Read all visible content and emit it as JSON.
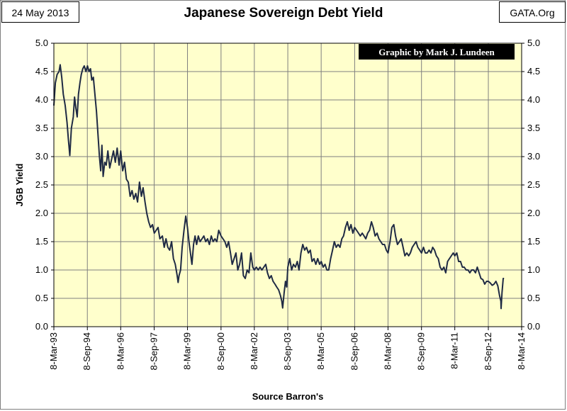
{
  "header": {
    "date": "24 May 2013",
    "site": "GATA.Org",
    "title": "Japanese Sovereign Debt Yield"
  },
  "colors": {
    "plot_background": "#ffffcc",
    "line": "#1f2a44",
    "gridline": "#7f7f7f",
    "credit_background": "#000000"
  },
  "chart_data": {
    "type": "line",
    "title": "Japanese Sovereign Debt Yield",
    "xlabel": "Source Barron's",
    "ylabel": "JGB Yield",
    "credit": "Graphic by Mark J. Lundeen",
    "ylim": [
      0,
      5
    ],
    "xlim": [
      "1993-03-08",
      "2014-03-08"
    ],
    "y_ticks": [
      "0.0",
      "0.5",
      "1.0",
      "1.5",
      "2.0",
      "2.5",
      "3.0",
      "3.5",
      "4.0",
      "4.5",
      "5.0"
    ],
    "x_ticks": [
      {
        "label": "8-Mar-93",
        "date": "1993-03-08"
      },
      {
        "label": "8-Sep-94",
        "date": "1994-09-08"
      },
      {
        "label": "8-Mar-96",
        "date": "1996-03-08"
      },
      {
        "label": "8-Sep-97",
        "date": "1997-09-08"
      },
      {
        "label": "8-Mar-99",
        "date": "1999-03-08"
      },
      {
        "label": "8-Sep-00",
        "date": "2000-09-08"
      },
      {
        "label": "8-Mar-02",
        "date": "2002-03-08"
      },
      {
        "label": "8-Sep-03",
        "date": "2003-09-08"
      },
      {
        "label": "8-Mar-05",
        "date": "2005-03-08"
      },
      {
        "label": "8-Sep-06",
        "date": "2006-09-08"
      },
      {
        "label": "8-Mar-08",
        "date": "2008-03-08"
      },
      {
        "label": "8-Sep-09",
        "date": "2009-09-08"
      },
      {
        "label": "8-Mar-11",
        "date": "2011-03-08"
      },
      {
        "label": "8-Sep-12",
        "date": "2012-09-08"
      },
      {
        "label": "8-Mar-14",
        "date": "2014-03-08"
      }
    ],
    "grid": {
      "horizontal": true,
      "vertical": true
    },
    "axis_right": true,
    "series": [
      {
        "points": [
          [
            "1993-03-08",
            3.9
          ],
          [
            "1993-04-01",
            4.3
          ],
          [
            "1993-05-01",
            4.45
          ],
          [
            "1993-06-01",
            4.5
          ],
          [
            "1993-06-20",
            4.62
          ],
          [
            "1993-07-15",
            4.4
          ],
          [
            "1993-08-10",
            4.1
          ],
          [
            "1993-09-10",
            3.9
          ],
          [
            "1993-10-10",
            3.6
          ],
          [
            "1993-11-01",
            3.3
          ],
          [
            "1993-11-25",
            3.02
          ],
          [
            "1993-12-20",
            3.5
          ],
          [
            "1994-01-20",
            3.7
          ],
          [
            "1994-02-10",
            4.05
          ],
          [
            "1994-03-05",
            3.85
          ],
          [
            "1994-03-25",
            3.7
          ],
          [
            "1994-04-15",
            4.1
          ],
          [
            "1994-05-10",
            4.3
          ],
          [
            "1994-06-01",
            4.45
          ],
          [
            "1994-06-25",
            4.55
          ],
          [
            "1994-07-20",
            4.6
          ],
          [
            "1994-08-15",
            4.5
          ],
          [
            "1994-09-10",
            4.6
          ],
          [
            "1994-10-05",
            4.5
          ],
          [
            "1994-10-30",
            4.55
          ],
          [
            "1994-11-20",
            4.35
          ],
          [
            "1994-12-15",
            4.4
          ],
          [
            "1995-01-10",
            4.1
          ],
          [
            "1995-02-05",
            3.8
          ],
          [
            "1995-03-01",
            3.4
          ],
          [
            "1995-03-25",
            3.0
          ],
          [
            "1995-04-15",
            2.75
          ],
          [
            "1995-05-05",
            3.2
          ],
          [
            "1995-05-25",
            2.65
          ],
          [
            "1995-06-20",
            2.9
          ],
          [
            "1995-07-15",
            2.85
          ],
          [
            "1995-08-10",
            3.1
          ],
          [
            "1995-09-10",
            2.8
          ],
          [
            "1995-10-10",
            2.95
          ],
          [
            "1995-11-10",
            3.1
          ],
          [
            "1995-12-10",
            2.9
          ],
          [
            "1996-01-10",
            3.15
          ],
          [
            "1996-02-10",
            2.85
          ],
          [
            "1996-03-08",
            3.1
          ],
          [
            "1996-04-10",
            2.75
          ],
          [
            "1996-05-10",
            2.9
          ],
          [
            "1996-06-10",
            2.6
          ],
          [
            "1996-07-10",
            2.55
          ],
          [
            "1996-08-10",
            2.3
          ],
          [
            "1996-09-10",
            2.4
          ],
          [
            "1996-10-10",
            2.25
          ],
          [
            "1996-11-10",
            2.35
          ],
          [
            "1996-12-10",
            2.2
          ],
          [
            "1997-01-10",
            2.55
          ],
          [
            "1997-02-10",
            2.3
          ],
          [
            "1997-03-10",
            2.45
          ],
          [
            "1997-04-10",
            2.2
          ],
          [
            "1997-05-10",
            2.0
          ],
          [
            "1997-06-10",
            1.85
          ],
          [
            "1997-07-10",
            1.75
          ],
          [
            "1997-08-10",
            1.8
          ],
          [
            "1997-09-10",
            1.65
          ],
          [
            "1997-10-10",
            1.7
          ],
          [
            "1997-11-10",
            1.75
          ],
          [
            "1997-12-10",
            1.55
          ],
          [
            "1998-01-20",
            1.6
          ],
          [
            "1998-02-20",
            1.4
          ],
          [
            "1998-03-20",
            1.55
          ],
          [
            "1998-04-20",
            1.4
          ],
          [
            "1998-05-20",
            1.35
          ],
          [
            "1998-06-20",
            1.5
          ],
          [
            "1998-07-20",
            1.2
          ],
          [
            "1998-08-20",
            1.1
          ],
          [
            "1998-09-20",
            0.9
          ],
          [
            "1998-10-05",
            0.78
          ],
          [
            "1998-10-20",
            0.9
          ],
          [
            "1998-11-15",
            1.0
          ],
          [
            "1998-12-10",
            1.4
          ],
          [
            "1999-01-10",
            1.7
          ],
          [
            "1999-02-08",
            1.95
          ],
          [
            "1999-03-08",
            1.75
          ],
          [
            "1999-04-01",
            1.5
          ],
          [
            "1999-04-25",
            1.3
          ],
          [
            "1999-05-20",
            1.1
          ],
          [
            "1999-06-15",
            1.45
          ],
          [
            "1999-07-10",
            1.6
          ],
          [
            "1999-08-05",
            1.45
          ],
          [
            "1999-09-01",
            1.6
          ],
          [
            "1999-10-01",
            1.5
          ],
          [
            "1999-11-01",
            1.55
          ],
          [
            "1999-12-01",
            1.6
          ],
          [
            "2000-01-01",
            1.5
          ],
          [
            "2000-02-01",
            1.55
          ],
          [
            "2000-03-01",
            1.45
          ],
          [
            "2000-04-01",
            1.6
          ],
          [
            "2000-05-01",
            1.5
          ],
          [
            "2000-06-01",
            1.55
          ],
          [
            "2000-07-01",
            1.5
          ],
          [
            "2000-08-01",
            1.7
          ],
          [
            "2000-09-08",
            1.6
          ],
          [
            "2000-10-10",
            1.55
          ],
          [
            "2000-11-10",
            1.5
          ],
          [
            "2000-12-10",
            1.4
          ],
          [
            "2001-01-10",
            1.5
          ],
          [
            "2001-02-10",
            1.3
          ],
          [
            "2001-03-10",
            1.1
          ],
          [
            "2001-04-10",
            1.2
          ],
          [
            "2001-05-10",
            1.3
          ],
          [
            "2001-06-10",
            1.0
          ],
          [
            "2001-07-10",
            1.1
          ],
          [
            "2001-08-10",
            1.3
          ],
          [
            "2001-09-10",
            0.9
          ],
          [
            "2001-10-10",
            0.85
          ],
          [
            "2001-11-10",
            1.0
          ],
          [
            "2001-12-10",
            0.95
          ],
          [
            "2002-01-10",
            1.3
          ],
          [
            "2002-02-10",
            1.05
          ],
          [
            "2002-03-08",
            1.0
          ],
          [
            "2002-04-10",
            1.05
          ],
          [
            "2002-05-10",
            1.0
          ],
          [
            "2002-06-10",
            1.05
          ],
          [
            "2002-07-10",
            1.0
          ],
          [
            "2002-08-10",
            1.05
          ],
          [
            "2002-09-10",
            1.1
          ],
          [
            "2002-10-10",
            0.95
          ],
          [
            "2002-11-10",
            0.85
          ],
          [
            "2002-12-10",
            0.9
          ],
          [
            "2003-01-10",
            0.8
          ],
          [
            "2003-02-10",
            0.75
          ],
          [
            "2003-03-10",
            0.7
          ],
          [
            "2003-04-10",
            0.65
          ],
          [
            "2003-05-10",
            0.55
          ],
          [
            "2003-06-01",
            0.45
          ],
          [
            "2003-06-15",
            0.33
          ],
          [
            "2003-07-10",
            0.6
          ],
          [
            "2003-08-01",
            0.8
          ],
          [
            "2003-08-20",
            0.7
          ],
          [
            "2003-09-08",
            1.05
          ],
          [
            "2003-10-10",
            1.2
          ],
          [
            "2003-11-10",
            1.0
          ],
          [
            "2003-12-10",
            1.1
          ],
          [
            "2004-01-10",
            1.05
          ],
          [
            "2004-02-10",
            1.15
          ],
          [
            "2004-03-10",
            1.0
          ],
          [
            "2004-04-10",
            1.3
          ],
          [
            "2004-05-10",
            1.45
          ],
          [
            "2004-06-10",
            1.35
          ],
          [
            "2004-07-10",
            1.4
          ],
          [
            "2004-08-10",
            1.3
          ],
          [
            "2004-09-10",
            1.35
          ],
          [
            "2004-10-10",
            1.15
          ],
          [
            "2004-11-10",
            1.2
          ],
          [
            "2004-12-10",
            1.1
          ],
          [
            "2005-01-10",
            1.2
          ],
          [
            "2005-02-10",
            1.1
          ],
          [
            "2005-03-08",
            1.15
          ],
          [
            "2005-04-10",
            1.05
          ],
          [
            "2005-05-10",
            1.1
          ],
          [
            "2005-06-10",
            1.0
          ],
          [
            "2005-07-10",
            1.0
          ],
          [
            "2005-08-10",
            1.2
          ],
          [
            "2005-09-10",
            1.35
          ],
          [
            "2005-10-10",
            1.5
          ],
          [
            "2005-11-10",
            1.4
          ],
          [
            "2005-12-10",
            1.45
          ],
          [
            "2006-01-10",
            1.4
          ],
          [
            "2006-02-10",
            1.55
          ],
          [
            "2006-03-10",
            1.6
          ],
          [
            "2006-04-10",
            1.75
          ],
          [
            "2006-05-10",
            1.85
          ],
          [
            "2006-06-10",
            1.7
          ],
          [
            "2006-07-10",
            1.8
          ],
          [
            "2006-08-10",
            1.65
          ],
          [
            "2006-09-08",
            1.75
          ],
          [
            "2006-10-10",
            1.7
          ],
          [
            "2006-11-10",
            1.65
          ],
          [
            "2006-12-10",
            1.6
          ],
          [
            "2007-01-10",
            1.65
          ],
          [
            "2007-02-10",
            1.6
          ],
          [
            "2007-03-10",
            1.55
          ],
          [
            "2007-04-10",
            1.65
          ],
          [
            "2007-05-10",
            1.7
          ],
          [
            "2007-06-10",
            1.85
          ],
          [
            "2007-07-10",
            1.75
          ],
          [
            "2007-08-10",
            1.6
          ],
          [
            "2007-09-10",
            1.65
          ],
          [
            "2007-10-10",
            1.55
          ],
          [
            "2007-11-10",
            1.5
          ],
          [
            "2007-12-10",
            1.45
          ],
          [
            "2008-01-10",
            1.45
          ],
          [
            "2008-02-10",
            1.35
          ],
          [
            "2008-03-08",
            1.3
          ],
          [
            "2008-04-10",
            1.5
          ],
          [
            "2008-05-10",
            1.75
          ],
          [
            "2008-06-10",
            1.8
          ],
          [
            "2008-07-10",
            1.6
          ],
          [
            "2008-08-10",
            1.45
          ],
          [
            "2008-09-10",
            1.5
          ],
          [
            "2008-10-10",
            1.55
          ],
          [
            "2008-11-10",
            1.4
          ],
          [
            "2008-12-10",
            1.25
          ],
          [
            "2009-01-10",
            1.3
          ],
          [
            "2009-02-10",
            1.25
          ],
          [
            "2009-03-10",
            1.3
          ],
          [
            "2009-04-10",
            1.4
          ],
          [
            "2009-05-10",
            1.45
          ],
          [
            "2009-06-10",
            1.5
          ],
          [
            "2009-07-10",
            1.4
          ],
          [
            "2009-08-10",
            1.35
          ],
          [
            "2009-09-08",
            1.3
          ],
          [
            "2009-10-10",
            1.4
          ],
          [
            "2009-11-10",
            1.3
          ],
          [
            "2009-12-10",
            1.3
          ],
          [
            "2010-01-10",
            1.35
          ],
          [
            "2010-02-10",
            1.3
          ],
          [
            "2010-03-10",
            1.4
          ],
          [
            "2010-04-10",
            1.35
          ],
          [
            "2010-05-10",
            1.25
          ],
          [
            "2010-06-10",
            1.2
          ],
          [
            "2010-07-10",
            1.05
          ],
          [
            "2010-08-10",
            1.0
          ],
          [
            "2010-09-10",
            1.05
          ],
          [
            "2010-10-10",
            0.95
          ],
          [
            "2010-11-10",
            1.15
          ],
          [
            "2010-12-10",
            1.2
          ],
          [
            "2011-01-10",
            1.25
          ],
          [
            "2011-02-10",
            1.3
          ],
          [
            "2011-03-08",
            1.25
          ],
          [
            "2011-04-10",
            1.3
          ],
          [
            "2011-05-10",
            1.15
          ],
          [
            "2011-06-10",
            1.15
          ],
          [
            "2011-07-10",
            1.05
          ],
          [
            "2011-08-10",
            1.05
          ],
          [
            "2011-09-10",
            1.0
          ],
          [
            "2011-10-10",
            1.0
          ],
          [
            "2011-11-10",
            0.95
          ],
          [
            "2011-12-10",
            1.0
          ],
          [
            "2012-01-10",
            1.0
          ],
          [
            "2012-02-10",
            0.95
          ],
          [
            "2012-03-10",
            1.05
          ],
          [
            "2012-04-10",
            0.95
          ],
          [
            "2012-05-10",
            0.85
          ],
          [
            "2012-06-10",
            0.83
          ],
          [
            "2012-07-10",
            0.75
          ],
          [
            "2012-08-10",
            0.8
          ],
          [
            "2012-09-08",
            0.8
          ],
          [
            "2012-10-10",
            0.77
          ],
          [
            "2012-11-10",
            0.73
          ],
          [
            "2012-12-10",
            0.75
          ],
          [
            "2013-01-10",
            0.8
          ],
          [
            "2013-02-10",
            0.72
          ],
          [
            "2013-03-10",
            0.55
          ],
          [
            "2013-04-01",
            0.45
          ],
          [
            "2013-04-05",
            0.32
          ],
          [
            "2013-04-20",
            0.6
          ],
          [
            "2013-05-10",
            0.85
          ],
          [
            "2013-05-24",
            0.85
          ]
        ]
      }
    ]
  }
}
